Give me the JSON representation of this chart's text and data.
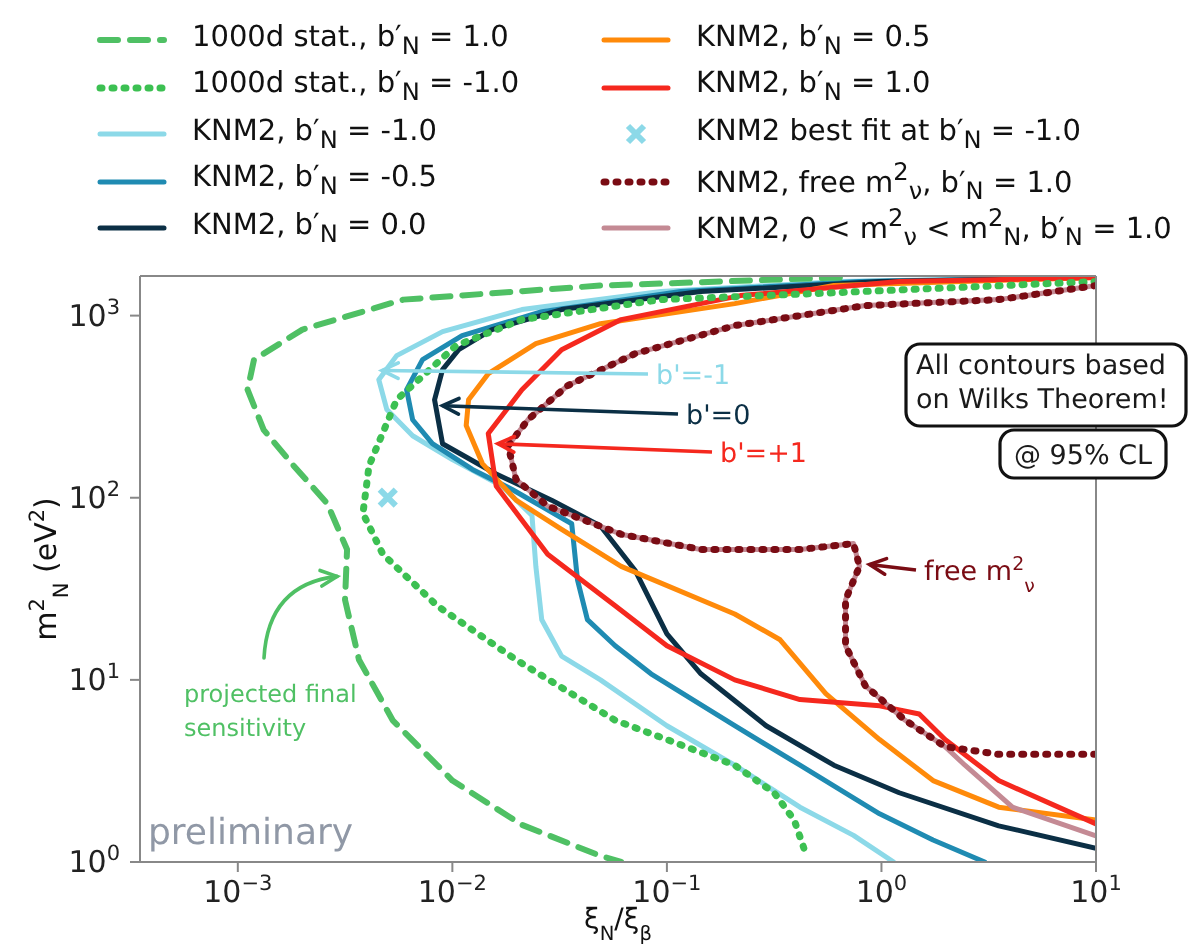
{
  "chart_data": {
    "type": "line",
    "xlabel": "ξ$_{N}$/ξ$_{β}$",
    "ylabel": "m$^{2}$$_{N}$ (eV$^{2}$)",
    "log": "xy",
    "legend": "top",
    "xlim": [
      0.00035,
      10
    ],
    "ylim": [
      1,
      1650
    ],
    "xticks": [
      {
        "value": 0.001,
        "label": "10$^{−3}$"
      },
      {
        "value": 0.01,
        "label": "10$^{−2}$"
      },
      {
        "value": 0.1,
        "label": "10$^{−1}$"
      },
      {
        "value": 1,
        "label": "10$^{0}$"
      },
      {
        "value": 10,
        "label": "10$^{1}$"
      }
    ],
    "yticks": [
      {
        "value": 1,
        "label": "10$^{0}$"
      },
      {
        "value": 10,
        "label": "10$^{1}$"
      },
      {
        "value": 100,
        "label": "10$^{2}$"
      },
      {
        "value": 1000,
        "label": "10$^{3}$"
      }
    ],
    "series": [
      {
        "name": "1000d stat., b′$_{N}$ = 1.0",
        "color": "#4fc064",
        "line_style": "dashed",
        "x": [
          0.64,
          0.049,
          0.0059,
          0.002,
          0.00119,
          0.00111,
          0.00132,
          0.00182,
          0.00261,
          0.00323,
          0.00316,
          0.00367,
          0.00527,
          0.01,
          0.0211,
          0.049,
          0.0612
        ],
        "values": [
          1620,
          1462,
          1224,
          838,
          573,
          392,
          236,
          150,
          93,
          52,
          27.5,
          12.9,
          6.0,
          2.8,
          1.6,
          1.08,
          1.0
        ]
      },
      {
        "name": "1000d stat., b′$_{N}$ = -1.0",
        "color": "#3cc052",
        "line_style": "dotted",
        "x": [
          10,
          0.484,
          0.0938,
          0.0211,
          0.0104,
          0.0055,
          0.00409,
          0.00383,
          0.00474,
          0.0085,
          0.0198,
          0.0574,
          0.1,
          0.207,
          0.316,
          0.392,
          0.445
        ],
        "values": [
          1538,
          1321,
          1224,
          951,
          684,
          345,
          150,
          82,
          49,
          25.5,
          12.9,
          6.0,
          4.7,
          3.4,
          2.4,
          1.7,
          1.1
        ]
      },
      {
        "name": "KNM2, b′$_{N}$ = -1.0",
        "color": "#8cd9e8",
        "line_style": "solid",
        "x": [
          7.1,
          0.64,
          0.0938,
          0.0211,
          0.009,
          0.0055,
          0.00454,
          0.00495,
          0.00653,
          0.01,
          0.017,
          0.0235,
          0.0245,
          0.0261,
          0.0323,
          0.049,
          0.1,
          0.207,
          0.417,
          0.741,
          1.14
        ],
        "values": [
          1617,
          1538,
          1355,
          1079,
          817,
          603,
          445,
          305,
          219,
          162,
          116,
          80,
          42,
          21.4,
          13.5,
          10,
          5.6,
          3.4,
          2.0,
          1.4,
          1.0
        ]
      },
      {
        "name": "KNM2, b′$_{N}$ = -0.5",
        "color": "#1f8bb2",
        "line_style": "solid",
        "x": [
          8.26,
          0.79,
          0.116,
          0.0261,
          0.0111,
          0.00726,
          0.00612,
          0.00653,
          0.00807,
          0.0124,
          0.019,
          0.036,
          0.0383,
          0.0426,
          0.0574,
          0.0843,
          0.207,
          0.417,
          0.98,
          1.74,
          3.03
        ],
        "values": [
          1617,
          1538,
          1355,
          1052,
          776,
          573,
          392,
          268,
          198,
          143,
          111,
          72,
          35.4,
          21.4,
          15.4,
          10.8,
          5.6,
          3.4,
          1.84,
          1.32,
          1.0
        ]
      },
      {
        "name": "KNM2, b′$_{N}$ = 0.0",
        "color": "#0b2f45",
        "line_style": "solid",
        "x": [
          9.18,
          0.98,
          0.144,
          0.0323,
          0.0153,
          0.0107,
          0.009,
          0.00826,
          0.009,
          0.016,
          0.029,
          0.049,
          0.071,
          0.1,
          0.144,
          0.29,
          0.6,
          1.21,
          3.52,
          10
        ],
        "values": [
          1617,
          1538,
          1355,
          1079,
          838,
          650,
          505,
          345,
          198,
          135,
          97,
          70,
          40,
          17.9,
          10.8,
          5.6,
          3.4,
          2.4,
          1.58,
          1.19
        ]
      },
      {
        "name": "KNM2, b′$_{N}$ = 0.5",
        "color": "#ff8a0a",
        "line_style": "solid",
        "x": [
          10,
          0.6,
          0.207,
          0.049,
          0.0245,
          0.0147,
          0.0119,
          0.0116,
          0.0138,
          0.0198,
          0.0323,
          0.0612,
          0.207,
          0.337,
          0.55,
          0.98,
          1.74,
          3.52,
          10
        ],
        "values": [
          1620,
          1462,
          1164,
          903,
          702,
          480,
          345,
          249,
          154,
          97,
          67,
          42,
          23,
          16.6,
          8.4,
          4.7,
          2.8,
          2.0,
          1.7
        ]
      },
      {
        "name": "KNM2, b′$_{N}$ = 1.0",
        "color": "#f5281e",
        "line_style": "solid",
        "x": [
          10,
          1.21,
          0.22,
          0.0612,
          0.0323,
          0.0211,
          0.0147,
          0.016,
          0.0278,
          0.0574,
          0.1,
          0.207,
          0.417,
          0.98,
          1.5,
          1.98,
          3.52,
          10
        ],
        "values": [
          1617,
          1538,
          1288,
          951,
          650,
          392,
          225,
          116,
          49,
          25.5,
          15.4,
          10,
          7.8,
          7.2,
          6.5,
          4.7,
          2.8,
          1.62
        ]
      },
      {
        "name": "KNM2 best fit at b′$_{N}$ = -1.0",
        "type": "scatter",
        "marker": "cross",
        "color": "#8cd9e8",
        "x": [
          0.005
        ],
        "values": [
          100
        ]
      },
      {
        "name": "KNM2, free m$^{2}$$_{ν}$, b′$_{N}$ = 1.0",
        "color": "#7a0c14",
        "line_style": "dotted",
        "x": [
          10,
          3.52,
          0.84,
          0.207,
          0.071,
          0.0344,
          0.0225,
          0.0182,
          0.0198,
          0.0278,
          0.0612,
          0.144,
          0.417,
          0.741,
          0.79,
          0.68,
          0.68,
          0.84,
          1.29,
          1.98,
          3.52,
          10
        ],
        "values": [
          1462,
          1224,
          1135,
          881,
          618,
          412,
          268,
          193,
          126,
          90,
          63,
          52,
          52,
          56,
          42,
          27.5,
          15.4,
          9.3,
          6.0,
          4.3,
          3.9,
          3.9
        ]
      },
      {
        "name": "KNM2, 0 < m$^{2}$$_{ν}$ < m$^{2}$$_{N}$, b′$_{N}$ = 1.0",
        "color": "#c48a94",
        "line_style": "solid",
        "x": [
          10,
          3.52,
          0.84,
          0.207,
          0.071,
          0.0344,
          0.0225,
          0.0182,
          0.0198,
          0.0278,
          0.0612,
          0.144,
          0.417,
          0.741,
          0.79,
          0.68,
          0.68,
          0.84,
          1.29,
          1.98,
          2.45,
          4.08,
          10
        ],
        "values": [
          1462,
          1224,
          1135,
          881,
          618,
          412,
          268,
          193,
          126,
          90,
          63,
          52,
          52,
          56,
          42,
          27.5,
          15.4,
          9.3,
          6.0,
          4.3,
          3.4,
          2.0,
          1.39
        ]
      }
    ],
    "annotations": [
      {
        "text": "b'=-1",
        "x": 0.0047,
        "y": 500
      },
      {
        "text": "b'=0",
        "x": 0.009,
        "y": 320
      },
      {
        "text": "b'=+1",
        "x": 0.0163,
        "y": 198
      },
      {
        "text": "free m$^{2}$$_{ν}$",
        "x": 0.88,
        "y": 43
      },
      {
        "text": "projected final sensitivity",
        "x": 0.0029,
        "y": 37
      },
      "All contours based on Wilks Theorem!",
      "@ 95% CL",
      "preliminary"
    ]
  }
}
